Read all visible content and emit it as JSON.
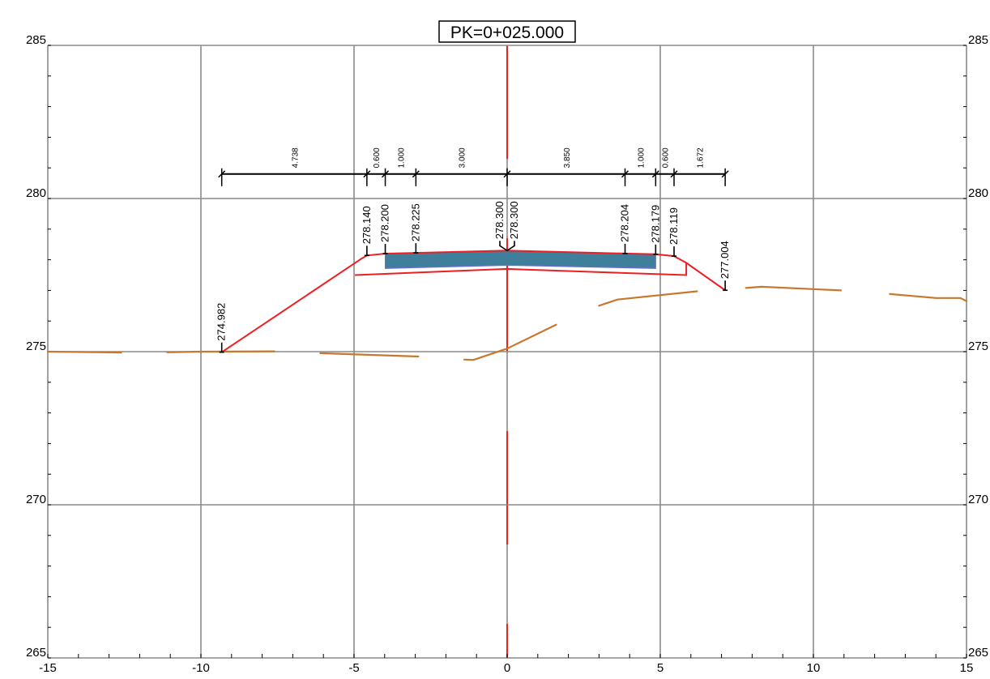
{
  "title": "PK=0+025.000",
  "axes": {
    "x_ticks": [
      "-15",
      "-10",
      "-5",
      "0",
      "5",
      "10",
      "15"
    ],
    "y_ticks": [
      "285",
      "280",
      "275",
      "270",
      "265"
    ],
    "x_range": [
      -15,
      15
    ],
    "y_range": [
      265,
      285
    ],
    "grid": true
  },
  "chart_data": {
    "type": "cross-section",
    "widths": [
      {
        "x1": -9.32,
        "x2": -4.58,
        "label": "4.738"
      },
      {
        "x1": -4.58,
        "x2": -3.98,
        "label": "0.600"
      },
      {
        "x1": -3.98,
        "x2": -2.98,
        "label": "1.000"
      },
      {
        "x1": -2.98,
        "x2": 0.0,
        "label": "3.000"
      },
      {
        "x1": 0.0,
        "x2": 3.85,
        "label": "3.850"
      },
      {
        "x1": 3.85,
        "x2": 4.85,
        "label": "1.000"
      },
      {
        "x1": 4.85,
        "x2": 5.45,
        "label": "0.600"
      },
      {
        "x1": 5.45,
        "x2": 7.12,
        "label": "1.672"
      }
    ],
    "elevations": [
      {
        "x": -9.32,
        "y": 274.982,
        "label": "274.982"
      },
      {
        "x": -4.58,
        "y": 278.14,
        "label": "278.140"
      },
      {
        "x": -3.98,
        "y": 278.2,
        "label": "278.200"
      },
      {
        "x": -2.98,
        "y": 278.225,
        "label": "278.225"
      },
      {
        "x": 0.0,
        "y": 278.3,
        "label": "278.300",
        "side": "left"
      },
      {
        "x": 0.0,
        "y": 278.3,
        "label": "278.300",
        "side": "right"
      },
      {
        "x": 3.85,
        "y": 278.204,
        "label": "278.204"
      },
      {
        "x": 4.85,
        "y": 278.179,
        "label": "278.179"
      },
      {
        "x": 5.45,
        "y": 278.119,
        "label": "278.119"
      },
      {
        "x": 7.12,
        "y": 277.004,
        "label": "277.004",
        "rot": true
      }
    ],
    "design_profile": [
      [
        -9.32,
        274.982
      ],
      [
        -4.75,
        278.04
      ],
      [
        -4.58,
        278.14
      ],
      [
        -3.98,
        278.2
      ],
      [
        -2.98,
        278.225
      ],
      [
        0.0,
        278.3
      ],
      [
        3.85,
        278.204
      ],
      [
        4.85,
        278.179
      ],
      [
        5.45,
        278.119
      ],
      [
        5.85,
        277.9
      ],
      [
        7.12,
        277.004
      ]
    ],
    "subgrade": [
      [
        -4.97,
        277.5
      ],
      [
        0.0,
        277.7
      ],
      [
        5.85,
        277.5
      ],
      [
        5.85,
        277.9
      ]
    ],
    "pavement": [
      [
        -3.98,
        278.2
      ],
      [
        0.0,
        278.3
      ],
      [
        4.85,
        278.179
      ],
      [
        4.85,
        277.72
      ],
      [
        0.0,
        277.82
      ],
      [
        -3.98,
        277.72
      ]
    ],
    "terrain": [
      [
        [
          -15.0,
          275.0
        ],
        [
          -12.6,
          274.97
        ]
      ],
      [
        [
          -11.1,
          274.98
        ],
        [
          -10.0,
          275.0
        ],
        [
          -7.6,
          275.01
        ]
      ],
      [
        [
          -6.1,
          274.95
        ],
        [
          -2.9,
          274.84
        ]
      ],
      [
        [
          -1.4,
          274.74
        ],
        [
          -1.1,
          274.73
        ],
        [
          0.0,
          275.1
        ],
        [
          1.6,
          275.88
        ]
      ],
      [
        [
          3.0,
          276.5
        ],
        [
          3.6,
          276.7
        ],
        [
          6.2,
          276.97
        ]
      ],
      [
        [
          7.8,
          277.08
        ],
        [
          8.3,
          277.12
        ],
        [
          10.9,
          277.0
        ]
      ],
      [
        [
          12.5,
          276.88
        ],
        [
          14.0,
          276.75
        ],
        [
          14.8,
          276.75
        ],
        [
          15.0,
          276.65
        ]
      ]
    ]
  }
}
